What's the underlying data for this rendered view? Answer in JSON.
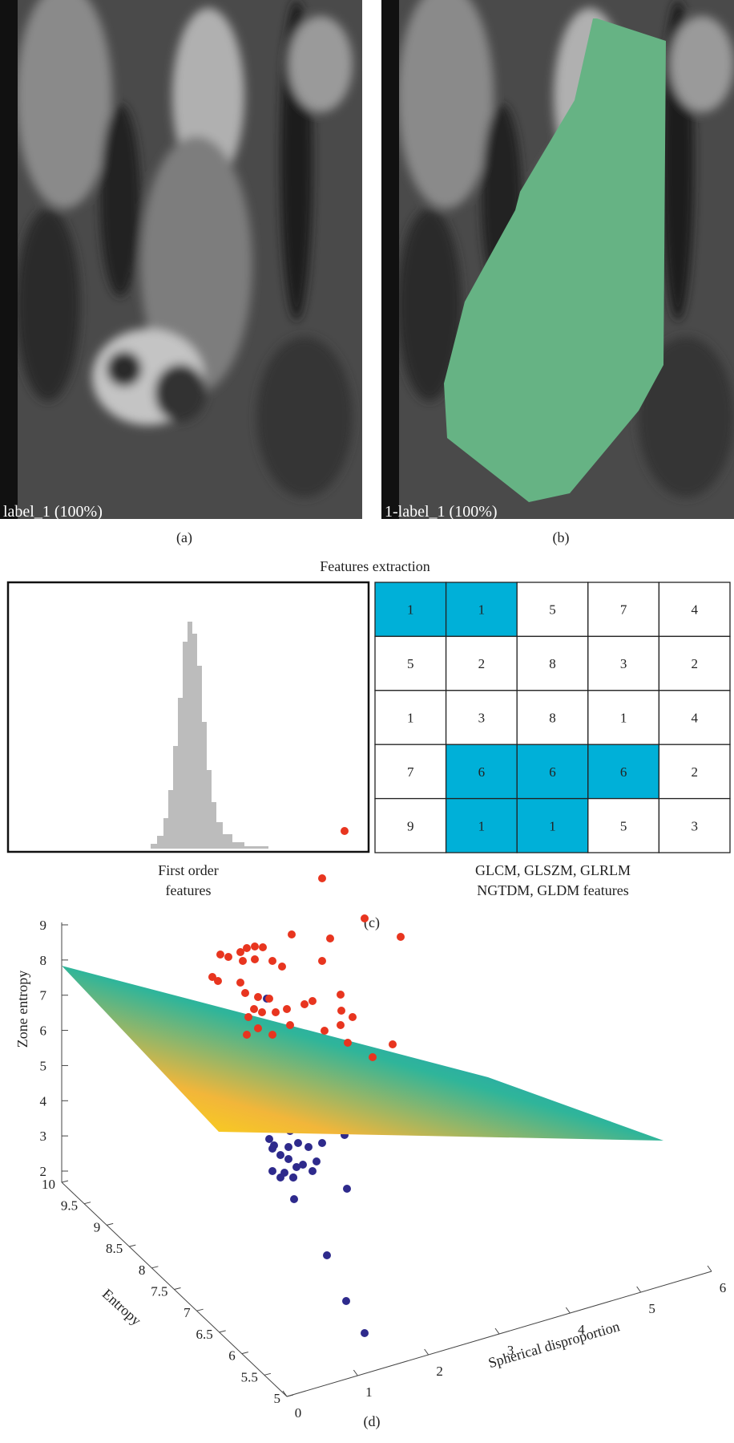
{
  "panel_a": {
    "overlay": "label_1 (100%)",
    "caption": "(a)"
  },
  "panel_b": {
    "overlay": "1-label_1 (100%)",
    "caption": "(b)"
  },
  "panel_c": {
    "title": "Features extraction",
    "histogram_caption": [
      "First order",
      "features"
    ],
    "table": {
      "rows": [
        [
          1,
          1,
          5,
          7,
          4
        ],
        [
          5,
          2,
          8,
          3,
          2
        ],
        [
          1,
          3,
          8,
          1,
          4
        ],
        [
          7,
          6,
          6,
          6,
          2
        ],
        [
          9,
          1,
          1,
          5,
          3
        ]
      ]
    },
    "table_caption": [
      "GLCM, GLSZM, GLRLM",
      "NGTDM, GLDM features"
    ],
    "caption": "(c)"
  },
  "panel_d": {
    "z_label": "Zone entropy",
    "y_label": "Entropy",
    "x_label": "Spherical disproportion",
    "zticks": [
      2,
      3,
      4,
      5,
      6,
      7,
      8,
      9
    ],
    "yticks": [
      5,
      5.5,
      6,
      6.5,
      7,
      7.5,
      8,
      8.5,
      9,
      9.5,
      10
    ],
    "xticks": [
      0,
      1,
      2,
      3,
      4,
      5,
      6
    ],
    "caption": "(d)"
  }
}
